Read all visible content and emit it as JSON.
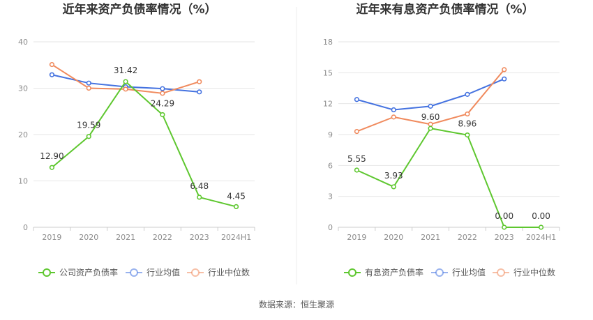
{
  "colors": {
    "company": "#5ec72f",
    "avg": "#4472e0",
    "median": "#f08a5d",
    "grid": "#e6e6e6",
    "axis": "#cccccc"
  },
  "chart_data": [
    {
      "type": "line",
      "title": "近年来资产负债率情况（%）",
      "categories": [
        "2019",
        "2020",
        "2021",
        "2022",
        "2023",
        "2024H1"
      ],
      "ylim": [
        0,
        40
      ],
      "yticks": [
        0,
        10,
        20,
        30,
        40
      ],
      "grid": true,
      "legend_position": "bottom",
      "series": [
        {
          "name": "公司资产负债率",
          "color": "#5ec72f",
          "values": [
            12.9,
            19.59,
            31.42,
            24.29,
            6.48,
            4.45
          ],
          "labels": [
            "12.90",
            "19.59",
            "31.42",
            "24.29",
            "6.48",
            "4.45"
          ]
        },
        {
          "name": "行业均值",
          "color": "#4472e0",
          "values": [
            32.9,
            31.1,
            30.3,
            29.9,
            29.2,
            null
          ]
        },
        {
          "name": "行业中位数",
          "color": "#f08a5d",
          "values": [
            35.1,
            30.0,
            29.8,
            28.9,
            31.4,
            null
          ]
        }
      ]
    },
    {
      "type": "line",
      "title": "近年来有息资产负债率情况（%）",
      "categories": [
        "2019",
        "2020",
        "2021",
        "2022",
        "2023",
        "2024H1"
      ],
      "ylim": [
        0,
        18
      ],
      "yticks": [
        0,
        3,
        6,
        9,
        12,
        15,
        18
      ],
      "grid": true,
      "legend_position": "bottom",
      "series": [
        {
          "name": "有息资产负债率",
          "color": "#5ec72f",
          "values": [
            5.55,
            3.93,
            9.6,
            8.96,
            0.0,
            0.0
          ],
          "labels": [
            "5.55",
            "3.93",
            "9.60",
            "8.96",
            "0.00",
            "0.00"
          ]
        },
        {
          "name": "行业均值",
          "color": "#4472e0",
          "values": [
            12.4,
            11.4,
            11.75,
            12.9,
            14.4,
            null
          ]
        },
        {
          "name": "行业中位数",
          "color": "#f08a5d",
          "values": [
            9.3,
            10.7,
            10.0,
            11.0,
            15.3,
            null
          ]
        }
      ]
    }
  ],
  "footer": {
    "source": "数据来源：恒生聚源"
  }
}
